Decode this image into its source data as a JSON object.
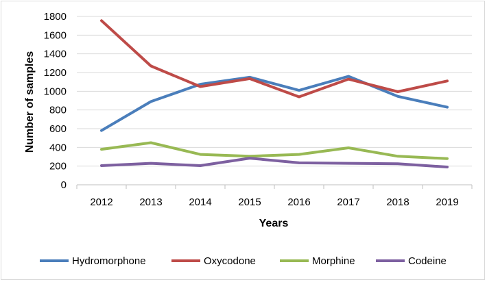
{
  "chart_data": {
    "type": "line",
    "title": "",
    "xlabel": "Years",
    "ylabel": "Number of samples",
    "ylim": [
      0,
      1800
    ],
    "yticks": [
      0,
      200,
      400,
      600,
      800,
      1000,
      1200,
      1400,
      1600,
      1800
    ],
    "categories": [
      "2012",
      "2013",
      "2014",
      "2015",
      "2016",
      "2017",
      "2018",
      "2019"
    ],
    "grid": true,
    "legend_position": "bottom",
    "series": [
      {
        "name": "Hydromorphone",
        "color": "#4a7ebb",
        "values": [
          580,
          890,
          1075,
          1150,
          1010,
          1160,
          945,
          830
        ]
      },
      {
        "name": "Oxycodone",
        "color": "#be4b48",
        "values": [
          1755,
          1270,
          1050,
          1135,
          940,
          1130,
          995,
          1110
        ]
      },
      {
        "name": "Morphine",
        "color": "#98b954",
        "values": [
          380,
          450,
          325,
          305,
          325,
          395,
          305,
          280
        ]
      },
      {
        "name": "Codeine",
        "color": "#7d60a0",
        "values": [
          205,
          230,
          205,
          285,
          235,
          230,
          225,
          190
        ]
      }
    ]
  }
}
